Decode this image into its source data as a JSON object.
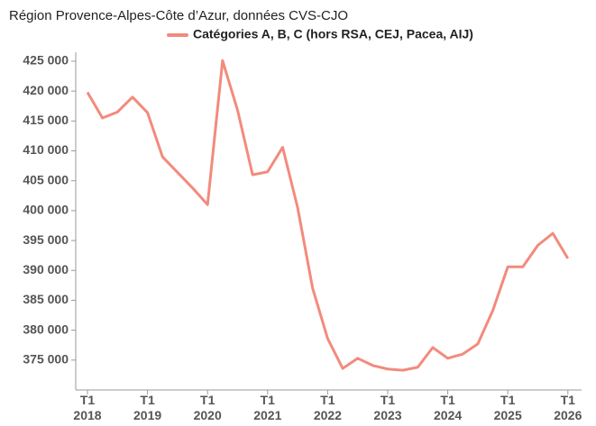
{
  "chart_data": {
    "type": "line",
    "title": "Région Provence-Alpes-Côte d’Azur, données CVS-CJO",
    "categories": [
      "T1\n2018",
      null,
      null,
      null,
      "T1\n2019",
      null,
      null,
      null,
      "T1\n2020",
      null,
      null,
      null,
      "T1\n2021",
      null,
      null,
      null,
      "T1\n2022",
      null,
      null,
      null,
      "T1\n2023",
      null,
      null,
      null,
      "T1\n2024",
      null,
      null,
      null,
      "T1\n2025",
      null,
      null,
      null,
      "T1\n2026"
    ],
    "series": [
      {
        "name": "Catégories A, B, C (hors RSA, CEJ, Pacea, AIJ)",
        "color": "#f28b7d",
        "values": [
          419800,
          415500,
          416500,
          419000,
          416400,
          409000,
          406400,
          403800,
          401000,
          425100,
          416800,
          406000,
          406500,
          410600,
          400500,
          387000,
          378600,
          373600,
          375300,
          374100,
          373500,
          373300,
          373800,
          377100,
          375300,
          376000,
          377700,
          383300,
          390600,
          390600,
          394200,
          396200,
          392000
        ]
      }
    ],
    "ylim": [
      370000,
      426500
    ],
    "yticks": [
      {
        "value": 375000,
        "label": "375 000"
      },
      {
        "value": 380000,
        "label": "380 000"
      },
      {
        "value": 385000,
        "label": "385 000"
      },
      {
        "value": 390000,
        "label": "390 000"
      },
      {
        "value": 395000,
        "label": "395 000"
      },
      {
        "value": 400000,
        "label": "400 000"
      },
      {
        "value": 405000,
        "label": "405 000"
      },
      {
        "value": 410000,
        "label": "410 000"
      },
      {
        "value": 415000,
        "label": "415 000"
      },
      {
        "value": 420000,
        "label": "420 000"
      },
      {
        "value": 425000,
        "label": "425 000"
      }
    ],
    "legend": "top"
  }
}
